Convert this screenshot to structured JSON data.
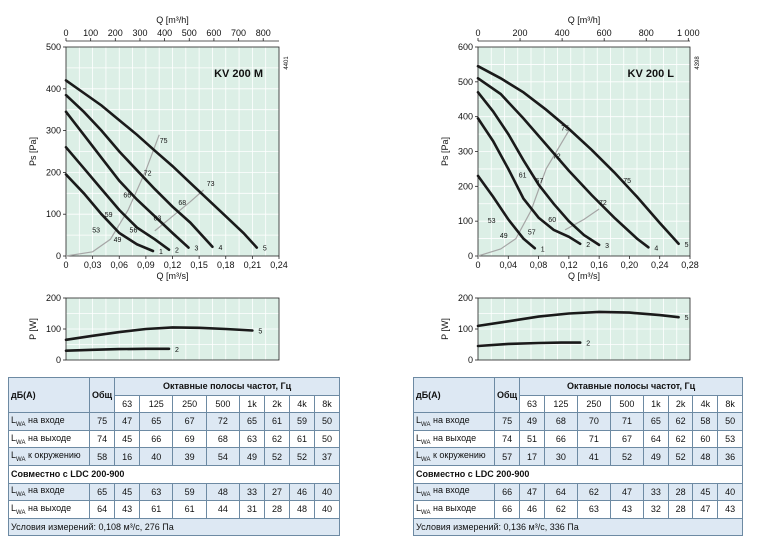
{
  "chart_data": [
    {
      "type": "line",
      "title": "KV 200 M",
      "code": "4401",
      "xlabel": "Q [m³/s]",
      "x2label": "Q [m³/h]",
      "ylabel": "Ps [Pa]",
      "xlim": [
        0,
        0.24
      ],
      "ylim": [
        0,
        500
      ],
      "x_ticks": [
        "0",
        "0,03",
        "0,06",
        "0,09",
        "0,12",
        "0,15",
        "0,18",
        "0,21",
        "0,24"
      ],
      "x2_ticks": [
        "0",
        "100",
        "200",
        "300",
        "400",
        "500",
        "600",
        "700",
        "800"
      ],
      "y_ticks": [
        "0",
        "100",
        "200",
        "300",
        "400",
        "500"
      ],
      "grid": true,
      "series": [
        {
          "name": "1",
          "points": [
            [
              0,
              195
            ],
            [
              0.02,
              150
            ],
            [
              0.04,
              100
            ],
            [
              0.06,
              55
            ],
            [
              0.08,
              28
            ],
            [
              0.098,
              12
            ]
          ]
        },
        {
          "name": "2",
          "points": [
            [
              0,
              260
            ],
            [
              0.02,
              210
            ],
            [
              0.04,
              160
            ],
            [
              0.06,
              110
            ],
            [
              0.08,
              68
            ],
            [
              0.1,
              40
            ],
            [
              0.116,
              15
            ]
          ]
        },
        {
          "name": "3",
          "points": [
            [
              0,
              345
            ],
            [
              0.02,
              290
            ],
            [
              0.04,
              235
            ],
            [
              0.06,
              180
            ],
            [
              0.08,
              135
            ],
            [
              0.1,
              95
            ],
            [
              0.12,
              55
            ],
            [
              0.138,
              20
            ]
          ]
        },
        {
          "name": "4",
          "points": [
            [
              0,
              385
            ],
            [
              0.02,
              345
            ],
            [
              0.04,
              300
            ],
            [
              0.06,
              250
            ],
            [
              0.08,
              205
            ],
            [
              0.1,
              160
            ],
            [
              0.12,
              118
            ],
            [
              0.14,
              80
            ],
            [
              0.165,
              22
            ]
          ]
        },
        {
          "name": "5",
          "points": [
            [
              0,
              420
            ],
            [
              0.02,
              390
            ],
            [
              0.04,
              360
            ],
            [
              0.06,
              325
            ],
            [
              0.08,
              290
            ],
            [
              0.1,
              252
            ],
            [
              0.12,
              215
            ],
            [
              0.14,
              175
            ],
            [
              0.16,
              135
            ],
            [
              0.18,
              95
            ],
            [
              0.2,
              55
            ],
            [
              0.215,
              20
            ]
          ]
        }
      ],
      "iso_lines": [
        {
          "label": "75",
          "points": [
            [
              0,
              0
            ],
            [
              0.03,
              10
            ],
            [
              0.05,
              40
            ],
            [
              0.07,
              110
            ],
            [
              0.09,
              205
            ],
            [
              0.105,
              290
            ]
          ]
        },
        {
          "label": "73",
          "points": [
            [
              0.1,
              60
            ],
            [
              0.12,
              95
            ],
            [
              0.14,
              130
            ],
            [
              0.155,
              158
            ]
          ]
        }
      ],
      "labels": [
        {
          "text": "53",
          "x": 0.034,
          "y": 56
        },
        {
          "text": "49",
          "x": 0.058,
          "y": 33
        },
        {
          "text": "59",
          "x": 0.048,
          "y": 93
        },
        {
          "text": "56",
          "x": 0.076,
          "y": 56
        },
        {
          "text": "66",
          "x": 0.069,
          "y": 140
        },
        {
          "text": "63",
          "x": 0.103,
          "y": 85
        },
        {
          "text": "72",
          "x": 0.092,
          "y": 193
        },
        {
          "text": "68",
          "x": 0.131,
          "y": 122
        },
        {
          "text": "75",
          "x": 0.11,
          "y": 270
        },
        {
          "text": "73",
          "x": 0.163,
          "y": 168
        }
      ]
    },
    {
      "type": "line",
      "title": "KV 200 M",
      "xlabel": "",
      "ylabel": "P [W]",
      "xlim": [
        0,
        0.24
      ],
      "ylim": [
        0,
        200
      ],
      "y_ticks": [
        "0",
        "100",
        "200"
      ],
      "grid": true,
      "series": [
        {
          "name": "2",
          "points": [
            [
              0,
              30
            ],
            [
              0.03,
              33
            ],
            [
              0.06,
              35
            ],
            [
              0.09,
              36
            ],
            [
              0.116,
              36
            ]
          ]
        },
        {
          "name": "5",
          "points": [
            [
              0,
              65
            ],
            [
              0.03,
              78
            ],
            [
              0.06,
              90
            ],
            [
              0.09,
              100
            ],
            [
              0.12,
              105
            ],
            [
              0.15,
              104
            ],
            [
              0.18,
              100
            ],
            [
              0.21,
              95
            ]
          ]
        }
      ]
    },
    {
      "type": "line",
      "title": "KV 200 L",
      "code": "4398",
      "xlabel": "Q [m³/s]",
      "x2label": "Q [m³/h]",
      "ylabel": "Ps [Pa]",
      "xlim": [
        0,
        0.28
      ],
      "ylim": [
        0,
        600
      ],
      "x_ticks": [
        "0",
        "0,04",
        "0,08",
        "0,12",
        "0,16",
        "0,20",
        "0,24",
        "0,28"
      ],
      "x2_ticks": [
        "0",
        "200",
        "400",
        "600",
        "800",
        "1 000"
      ],
      "y_ticks": [
        "0",
        "100",
        "200",
        "300",
        "400",
        "500",
        "600"
      ],
      "grid": true,
      "series": [
        {
          "name": "1",
          "points": [
            [
              0,
              230
            ],
            [
              0.02,
              170
            ],
            [
              0.04,
              105
            ],
            [
              0.06,
              50
            ],
            [
              0.075,
              22
            ]
          ]
        },
        {
          "name": "2",
          "points": [
            [
              0,
              395
            ],
            [
              0.02,
              330
            ],
            [
              0.04,
              250
            ],
            [
              0.06,
              165
            ],
            [
              0.08,
              110
            ],
            [
              0.1,
              75
            ],
            [
              0.12,
              55
            ],
            [
              0.135,
              35
            ]
          ]
        },
        {
          "name": "3",
          "points": [
            [
              0,
              470
            ],
            [
              0.02,
              415
            ],
            [
              0.04,
              350
            ],
            [
              0.06,
              275
            ],
            [
              0.08,
              205
            ],
            [
              0.1,
              150
            ],
            [
              0.12,
              100
            ],
            [
              0.14,
              60
            ],
            [
              0.16,
              32
            ]
          ]
        },
        {
          "name": "4",
          "points": [
            [
              0,
              510
            ],
            [
              0.03,
              465
            ],
            [
              0.06,
              395
            ],
            [
              0.09,
              320
            ],
            [
              0.12,
              245
            ],
            [
              0.15,
              175
            ],
            [
              0.18,
              110
            ],
            [
              0.21,
              50
            ],
            [
              0.225,
              25
            ]
          ]
        },
        {
          "name": "5",
          "points": [
            [
              0,
              545
            ],
            [
              0.03,
              510
            ],
            [
              0.06,
              470
            ],
            [
              0.09,
              420
            ],
            [
              0.12,
              365
            ],
            [
              0.15,
              305
            ],
            [
              0.18,
              240
            ],
            [
              0.21,
              170
            ],
            [
              0.24,
              95
            ],
            [
              0.265,
              35
            ]
          ]
        }
      ],
      "iso_lines": [
        {
          "label": "75",
          "points": [
            [
              0,
              0
            ],
            [
              0.03,
              20
            ],
            [
              0.05,
              50
            ],
            [
              0.07,
              130
            ],
            [
              0.09,
              250
            ],
            [
              0.12,
              360
            ]
          ]
        },
        {
          "label": "72",
          "points": [
            [
              0.115,
              75
            ],
            [
              0.14,
              105
            ],
            [
              0.16,
              135
            ]
          ]
        }
      ],
      "labels": [
        {
          "text": "53",
          "x": 0.018,
          "y": 95
        },
        {
          "text": "49",
          "x": 0.034,
          "y": 52
        },
        {
          "text": "57",
          "x": 0.071,
          "y": 62
        },
        {
          "text": "61",
          "x": 0.059,
          "y": 225
        },
        {
          "text": "60",
          "x": 0.098,
          "y": 98
        },
        {
          "text": "67",
          "x": 0.081,
          "y": 210
        },
        {
          "text": "72",
          "x": 0.104,
          "y": 280
        },
        {
          "text": "72",
          "x": 0.165,
          "y": 147
        },
        {
          "text": "75",
          "x": 0.115,
          "y": 360
        },
        {
          "text": "75",
          "x": 0.197,
          "y": 210
        }
      ]
    },
    {
      "type": "line",
      "title": "KV 200 L",
      "xlabel": "",
      "ylabel": "P [W]",
      "xlim": [
        0,
        0.28
      ],
      "ylim": [
        0,
        200
      ],
      "y_ticks": [
        "0",
        "100",
        "200"
      ],
      "grid": true,
      "series": [
        {
          "name": "2",
          "points": [
            [
              0,
              45
            ],
            [
              0.04,
              52
            ],
            [
              0.08,
              55
            ],
            [
              0.11,
              56
            ],
            [
              0.135,
              56
            ]
          ]
        },
        {
          "name": "5",
          "points": [
            [
              0,
              110
            ],
            [
              0.04,
              125
            ],
            [
              0.08,
              140
            ],
            [
              0.12,
              150
            ],
            [
              0.16,
              155
            ],
            [
              0.2,
              153
            ],
            [
              0.24,
              145
            ],
            [
              0.265,
              138
            ]
          ]
        }
      ]
    }
  ],
  "tables": [
    {
      "header_label": "дБ(А)",
      "total_label": "Общ",
      "bands_title": "Октавные полосы частот, Гц",
      "bands": [
        "63",
        "125",
        "250",
        "500",
        "1k",
        "2k",
        "4k",
        "8k"
      ],
      "rows": [
        {
          "sub": "WA",
          "label": "на входе",
          "total": "75",
          "values": [
            "47",
            "65",
            "67",
            "72",
            "65",
            "61",
            "59",
            "50"
          ]
        },
        {
          "sub": "WA",
          "label": "на выходе",
          "total": "74",
          "values": [
            "45",
            "66",
            "69",
            "68",
            "63",
            "62",
            "61",
            "50"
          ]
        },
        {
          "sub": "WA",
          "label": "к окружению",
          "total": "58",
          "values": [
            "16",
            "40",
            "39",
            "54",
            "49",
            "52",
            "52",
            "37"
          ]
        }
      ],
      "section_title": "Совместно с LDC 200-900",
      "rows2": [
        {
          "sub": "WA",
          "label": "на входе",
          "total": "65",
          "values": [
            "45",
            "63",
            "59",
            "48",
            "33",
            "27",
            "46",
            "40"
          ]
        },
        {
          "sub": "WA",
          "label": "на выходе",
          "total": "64",
          "values": [
            "43",
            "61",
            "61",
            "44",
            "31",
            "28",
            "48",
            "40"
          ]
        }
      ],
      "footer": "Условия измерений: 0,108 м³/с, 276 Па"
    },
    {
      "header_label": "дБ(А)",
      "total_label": "Общ",
      "bands_title": "Октавные полосы частот, Гц",
      "bands": [
        "63",
        "125",
        "250",
        "500",
        "1k",
        "2k",
        "4k",
        "8k"
      ],
      "rows": [
        {
          "sub": "WA",
          "label": "на входе",
          "total": "75",
          "values": [
            "49",
            "68",
            "70",
            "71",
            "65",
            "62",
            "58",
            "50"
          ]
        },
        {
          "sub": "WA",
          "label": "на выходе",
          "total": "74",
          "values": [
            "51",
            "66",
            "71",
            "67",
            "64",
            "62",
            "60",
            "53"
          ]
        },
        {
          "sub": "WA",
          "label": "к окружению",
          "total": "57",
          "values": [
            "17",
            "30",
            "41",
            "52",
            "49",
            "52",
            "48",
            "36"
          ]
        }
      ],
      "section_title": "Совместно с LDC 200-900",
      "rows2": [
        {
          "sub": "WA",
          "label": "на входе",
          "total": "66",
          "values": [
            "47",
            "64",
            "62",
            "47",
            "33",
            "28",
            "45",
            "40"
          ]
        },
        {
          "sub": "WA",
          "label": "на выходе",
          "total": "66",
          "values": [
            "46",
            "62",
            "63",
            "43",
            "32",
            "28",
            "47",
            "43"
          ]
        }
      ],
      "footer": "Условия измерений: 0,136 м³/с, 336 Па"
    }
  ],
  "colors": {
    "plot_bg": "#dcefe6",
    "grid": "#ffffff",
    "curve": "#1a1a1a",
    "iso": "#a6a6a6",
    "table_head": "#dde8f3",
    "table_border": "#6d8aa3"
  }
}
